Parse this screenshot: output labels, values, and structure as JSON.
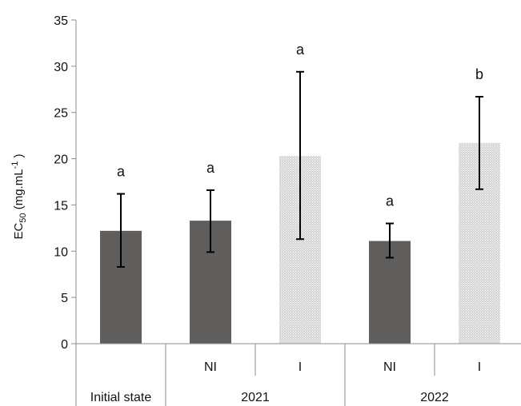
{
  "chart_data": {
    "type": "bar",
    "ylabel": {
      "main": "EC",
      "sub": "50",
      "unit_prefix": " (mg.mL",
      "unit_sup": "-1",
      "unit_suffix": " )"
    },
    "ylim": [
      0,
      35
    ],
    "yticks": [
      0,
      5,
      10,
      15,
      20,
      25,
      30,
      35
    ],
    "grid": false,
    "legend": "none",
    "categories": [
      "Initial state",
      "2021 NI",
      "2021 I",
      "2022 NI",
      "2022 I"
    ],
    "x_levels": {
      "level1": [
        "",
        "NI",
        "I",
        "NI",
        "I"
      ],
      "level2": [
        {
          "label": "Initial state",
          "span": 1
        },
        {
          "label": "2021",
          "span": 2
        },
        {
          "label": "2022",
          "span": 2
        }
      ]
    },
    "bars": [
      {
        "category": "Initial state",
        "value": 12.2,
        "err_low": 8.3,
        "err_high": 16.2,
        "letter": "a",
        "fill": "solid"
      },
      {
        "category": "2021 NI",
        "value": 13.3,
        "err_low": 9.9,
        "err_high": 16.6,
        "letter": "a",
        "fill": "solid"
      },
      {
        "category": "2021 I",
        "value": 20.3,
        "err_low": 11.3,
        "err_high": 29.4,
        "letter": "a",
        "fill": "hatched"
      },
      {
        "category": "2022 NI",
        "value": 11.1,
        "err_low": 9.3,
        "err_high": 13.0,
        "letter": "a",
        "fill": "solid"
      },
      {
        "category": "2022 I",
        "value": 21.7,
        "err_low": 16.7,
        "err_high": 26.7,
        "letter": "b",
        "fill": "hatched"
      }
    ],
    "colors": {
      "solid": "#5f5e5c",
      "hatched_bg": "#d4d4d4",
      "hatched_fg": "#ffffff",
      "axis": "#8c8c8c",
      "text": "#111111"
    }
  }
}
